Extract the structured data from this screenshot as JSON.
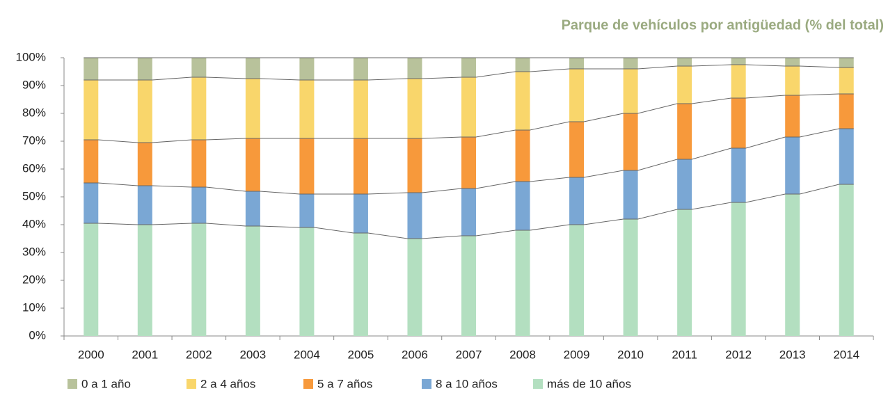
{
  "chart_data": {
    "type": "stacked_bar",
    "title": "Parque de vehículos por antigüedad (% del total)",
    "categories": [
      "2000",
      "2001",
      "2002",
      "2003",
      "2004",
      "2005",
      "2006",
      "2007",
      "2008",
      "2009",
      "2010",
      "2011",
      "2012",
      "2013",
      "2014"
    ],
    "series": [
      {
        "name": "0 a 1 año",
        "color": "#b8c29b",
        "values": [
          8,
          8,
          7,
          7.5,
          8,
          8,
          7.5,
          7,
          5,
          4,
          4,
          3,
          2.5,
          3,
          3.5
        ]
      },
      {
        "name": "2 a 4 años",
        "color": "#f9d66b",
        "values": [
          21.5,
          22.5,
          22.5,
          21.5,
          21,
          21,
          21.5,
          21.5,
          21,
          19,
          16,
          13.5,
          12,
          10.5,
          9.5
        ]
      },
      {
        "name": "5 a 7 años",
        "color": "#f7993b",
        "values": [
          15.5,
          15.5,
          17,
          19,
          20,
          20,
          19.5,
          18.5,
          18.5,
          20,
          20.5,
          20,
          18,
          15,
          12.5
        ]
      },
      {
        "name": "8 a 10 años",
        "color": "#7aa7d4",
        "values": [
          14.5,
          14,
          13,
          12.5,
          12,
          14,
          16.5,
          17,
          17.5,
          17,
          17.5,
          18,
          19.5,
          20.5,
          20
        ]
      },
      {
        "name": "más de 10 años",
        "color": "#b3dfc0",
        "values": [
          40.5,
          40,
          40.5,
          39.5,
          39,
          37,
          35,
          36,
          38,
          40,
          42,
          45.5,
          48,
          51,
          54.5
        ]
      }
    ],
    "ylim": [
      0,
      100
    ],
    "yticks": [
      {
        "value": 0,
        "label": "0%"
      },
      {
        "value": 10,
        "label": "10%"
      },
      {
        "value": 20,
        "label": "20%"
      },
      {
        "value": 30,
        "label": "30%"
      },
      {
        "value": 40,
        "label": "40%"
      },
      {
        "value": 50,
        "label": "50%"
      },
      {
        "value": 60,
        "label": "60%"
      },
      {
        "value": 70,
        "label": "70%"
      },
      {
        "value": 80,
        "label": "80%"
      },
      {
        "value": 90,
        "label": "90%"
      },
      {
        "value": 100,
        "label": "100%"
      }
    ],
    "legend": "bottom"
  }
}
